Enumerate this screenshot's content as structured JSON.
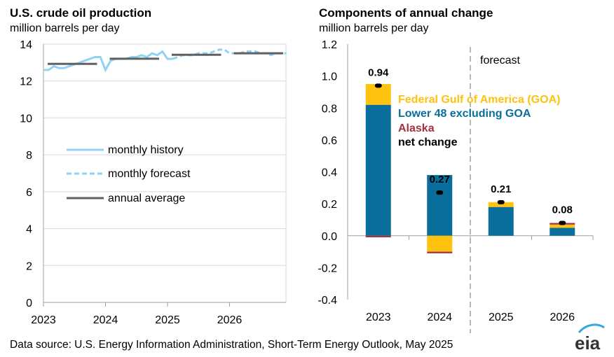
{
  "left_panel": {
    "title": "U.S. crude oil production",
    "subtitle": "million barrels per day"
  },
  "right_panel": {
    "title": "Components of annual change",
    "subtitle": "million barrels per day",
    "forecast_label": "forecast"
  },
  "source": "Data source: U.S. Energy Information Administration, Short-Term Energy Outlook, May 2025",
  "logo_text": "eia",
  "colors": {
    "monthly": "#8fd3f4",
    "annual": "#606060",
    "goa": "#ffc20e",
    "lower48": "#0a6e9c",
    "alaska": "#a33340",
    "net": "#000000",
    "grid": "#d9d9d9",
    "axis": "#a0a0a0"
  },
  "chart_data": [
    {
      "type": "line",
      "title": "U.S. crude oil production",
      "ylabel": "million barrels per day",
      "ylim": [
        0,
        14
      ],
      "yticks": [
        0,
        2,
        4,
        6,
        8,
        10,
        12,
        14
      ],
      "xticks": [
        "2023",
        "2024",
        "2025",
        "2026"
      ],
      "grid": "horizontal",
      "legend": "center-left",
      "series": [
        {
          "name": "monthly history",
          "style": "solid",
          "x": [
            "2023-01",
            "2023-02",
            "2023-03",
            "2023-04",
            "2023-05",
            "2023-06",
            "2023-07",
            "2023-08",
            "2023-09",
            "2023-10",
            "2023-11",
            "2023-12",
            "2024-01",
            "2024-02",
            "2024-03",
            "2024-04",
            "2024-05",
            "2024-06",
            "2024-07",
            "2024-08",
            "2024-09",
            "2024-10",
            "2024-11",
            "2024-12",
            "2025-01",
            "2025-02"
          ],
          "values": [
            12.6,
            12.6,
            12.8,
            12.7,
            12.7,
            12.8,
            12.9,
            13.0,
            13.1,
            13.2,
            13.3,
            13.3,
            12.6,
            13.1,
            13.2,
            13.2,
            13.2,
            13.3,
            13.3,
            13.4,
            13.3,
            13.5,
            13.4,
            13.6,
            13.2,
            13.2
          ]
        },
        {
          "name": "monthly forecast",
          "style": "dashed",
          "x": [
            "2025-02",
            "2025-03",
            "2025-04",
            "2025-05",
            "2025-06",
            "2025-07",
            "2025-08",
            "2025-09",
            "2025-10",
            "2025-11",
            "2025-12",
            "2026-01",
            "2026-02",
            "2026-03",
            "2026-04",
            "2026-05",
            "2026-06",
            "2026-07",
            "2026-08",
            "2026-09",
            "2026-10",
            "2026-11",
            "2026-12"
          ],
          "values": [
            13.2,
            13.3,
            13.4,
            13.4,
            13.4,
            13.5,
            13.5,
            13.5,
            13.6,
            13.7,
            13.7,
            13.5,
            13.5,
            13.5,
            13.6,
            13.6,
            13.6,
            13.5,
            13.5,
            13.4,
            13.5,
            13.5,
            13.5
          ]
        },
        {
          "name": "annual average",
          "style": "solid",
          "x": [
            "2023",
            "2024",
            "2025",
            "2026"
          ],
          "values": [
            12.93,
            13.21,
            13.42,
            13.5
          ]
        }
      ]
    },
    {
      "type": "bar",
      "stacked": true,
      "title": "Components of annual change",
      "ylabel": "million barrels per day",
      "ylim": [
        -0.4,
        1.2
      ],
      "yticks": [
        -0.4,
        -0.2,
        0.0,
        0.2,
        0.4,
        0.6,
        0.8,
        1.0,
        1.2
      ],
      "ytick_labels": [
        "-0.4",
        "-0.2",
        "0.0",
        "0.2",
        "0.4",
        "0.6",
        "0.8",
        "1.0",
        "1.2"
      ],
      "categories": [
        "2023",
        "2024",
        "2025",
        "2026"
      ],
      "forecast_start": "2025",
      "legend": "top-right",
      "series": [
        {
          "name": "Federal Gulf  of America (GOA)",
          "values": [
            0.13,
            -0.1,
            0.03,
            0.02
          ]
        },
        {
          "name": "Lower 48 excluding GOA",
          "values": [
            0.82,
            0.38,
            0.18,
            0.05
          ]
        },
        {
          "name": "Alaska",
          "values": [
            -0.01,
            -0.01,
            0.0,
            0.01
          ]
        }
      ],
      "net_change": {
        "name": "net change",
        "values": [
          0.94,
          0.27,
          0.21,
          0.08
        ],
        "labels": [
          "0.94",
          "0.27",
          "0.21",
          "0.08"
        ]
      }
    }
  ]
}
